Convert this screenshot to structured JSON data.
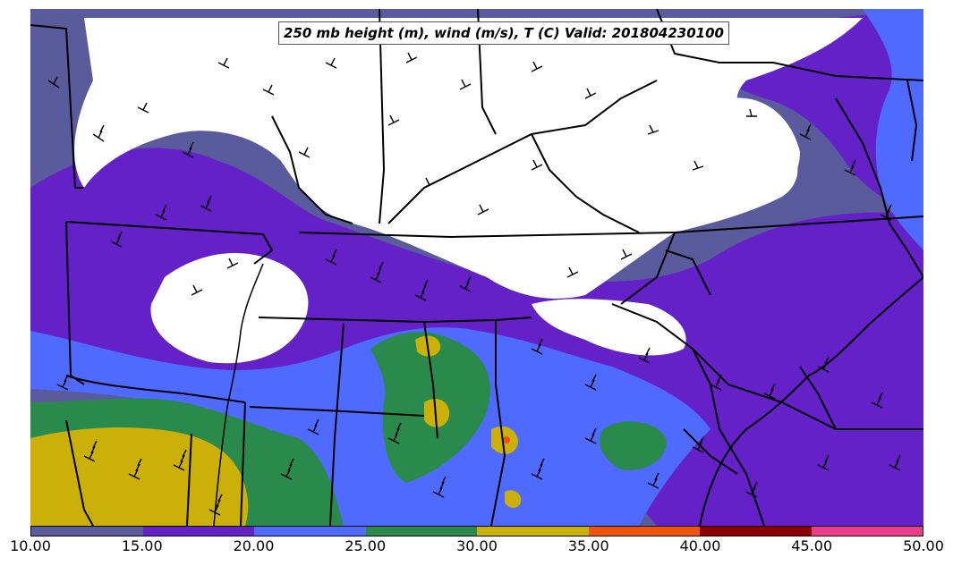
{
  "title": "250 mb height (m), wind (m/s), T (C) Valid: 201804230100",
  "colors": {
    "ocean_land_bg": "#5A5B9C",
    "level_10": "#5A5B9C",
    "level_15": "#6421C8",
    "level_20": "#4F6BFF",
    "level_25": "#2A8A4C",
    "level_30": "#CBB00A",
    "level_35": "#F2520A",
    "level_40": "#8E0000",
    "level_45": "#EE3B8C",
    "calm": "#FFFFFF",
    "borders": "#000000"
  },
  "colorbar": {
    "segments": [
      {
        "from": 10,
        "to": 15,
        "color": "#5A5B9C"
      },
      {
        "from": 15,
        "to": 20,
        "color": "#6421C8"
      },
      {
        "from": 20,
        "to": 25,
        "color": "#4F6BFF"
      },
      {
        "from": 25,
        "to": 30,
        "color": "#2A8A4C"
      },
      {
        "from": 30,
        "to": 35,
        "color": "#CBB00A"
      },
      {
        "from": 35,
        "to": 40,
        "color": "#F2520A"
      },
      {
        "from": 40,
        "to": 45,
        "color": "#8E0000"
      },
      {
        "from": 45,
        "to": 50,
        "color": "#EE3B8C"
      }
    ],
    "tick_labels": [
      "10.00",
      "15.00",
      "20.00",
      "25.00",
      "30.00",
      "35.00",
      "40.00",
      "45.00",
      "50.00"
    ]
  },
  "legend": {
    "title": "",
    "units": "m/s"
  },
  "map": {
    "variable": "250 mb wind speed (shaded), wind barbs",
    "region": "Southeastern / East-central United States",
    "overlays": [
      "state borders",
      "coastlines",
      "wind barbs"
    ]
  }
}
